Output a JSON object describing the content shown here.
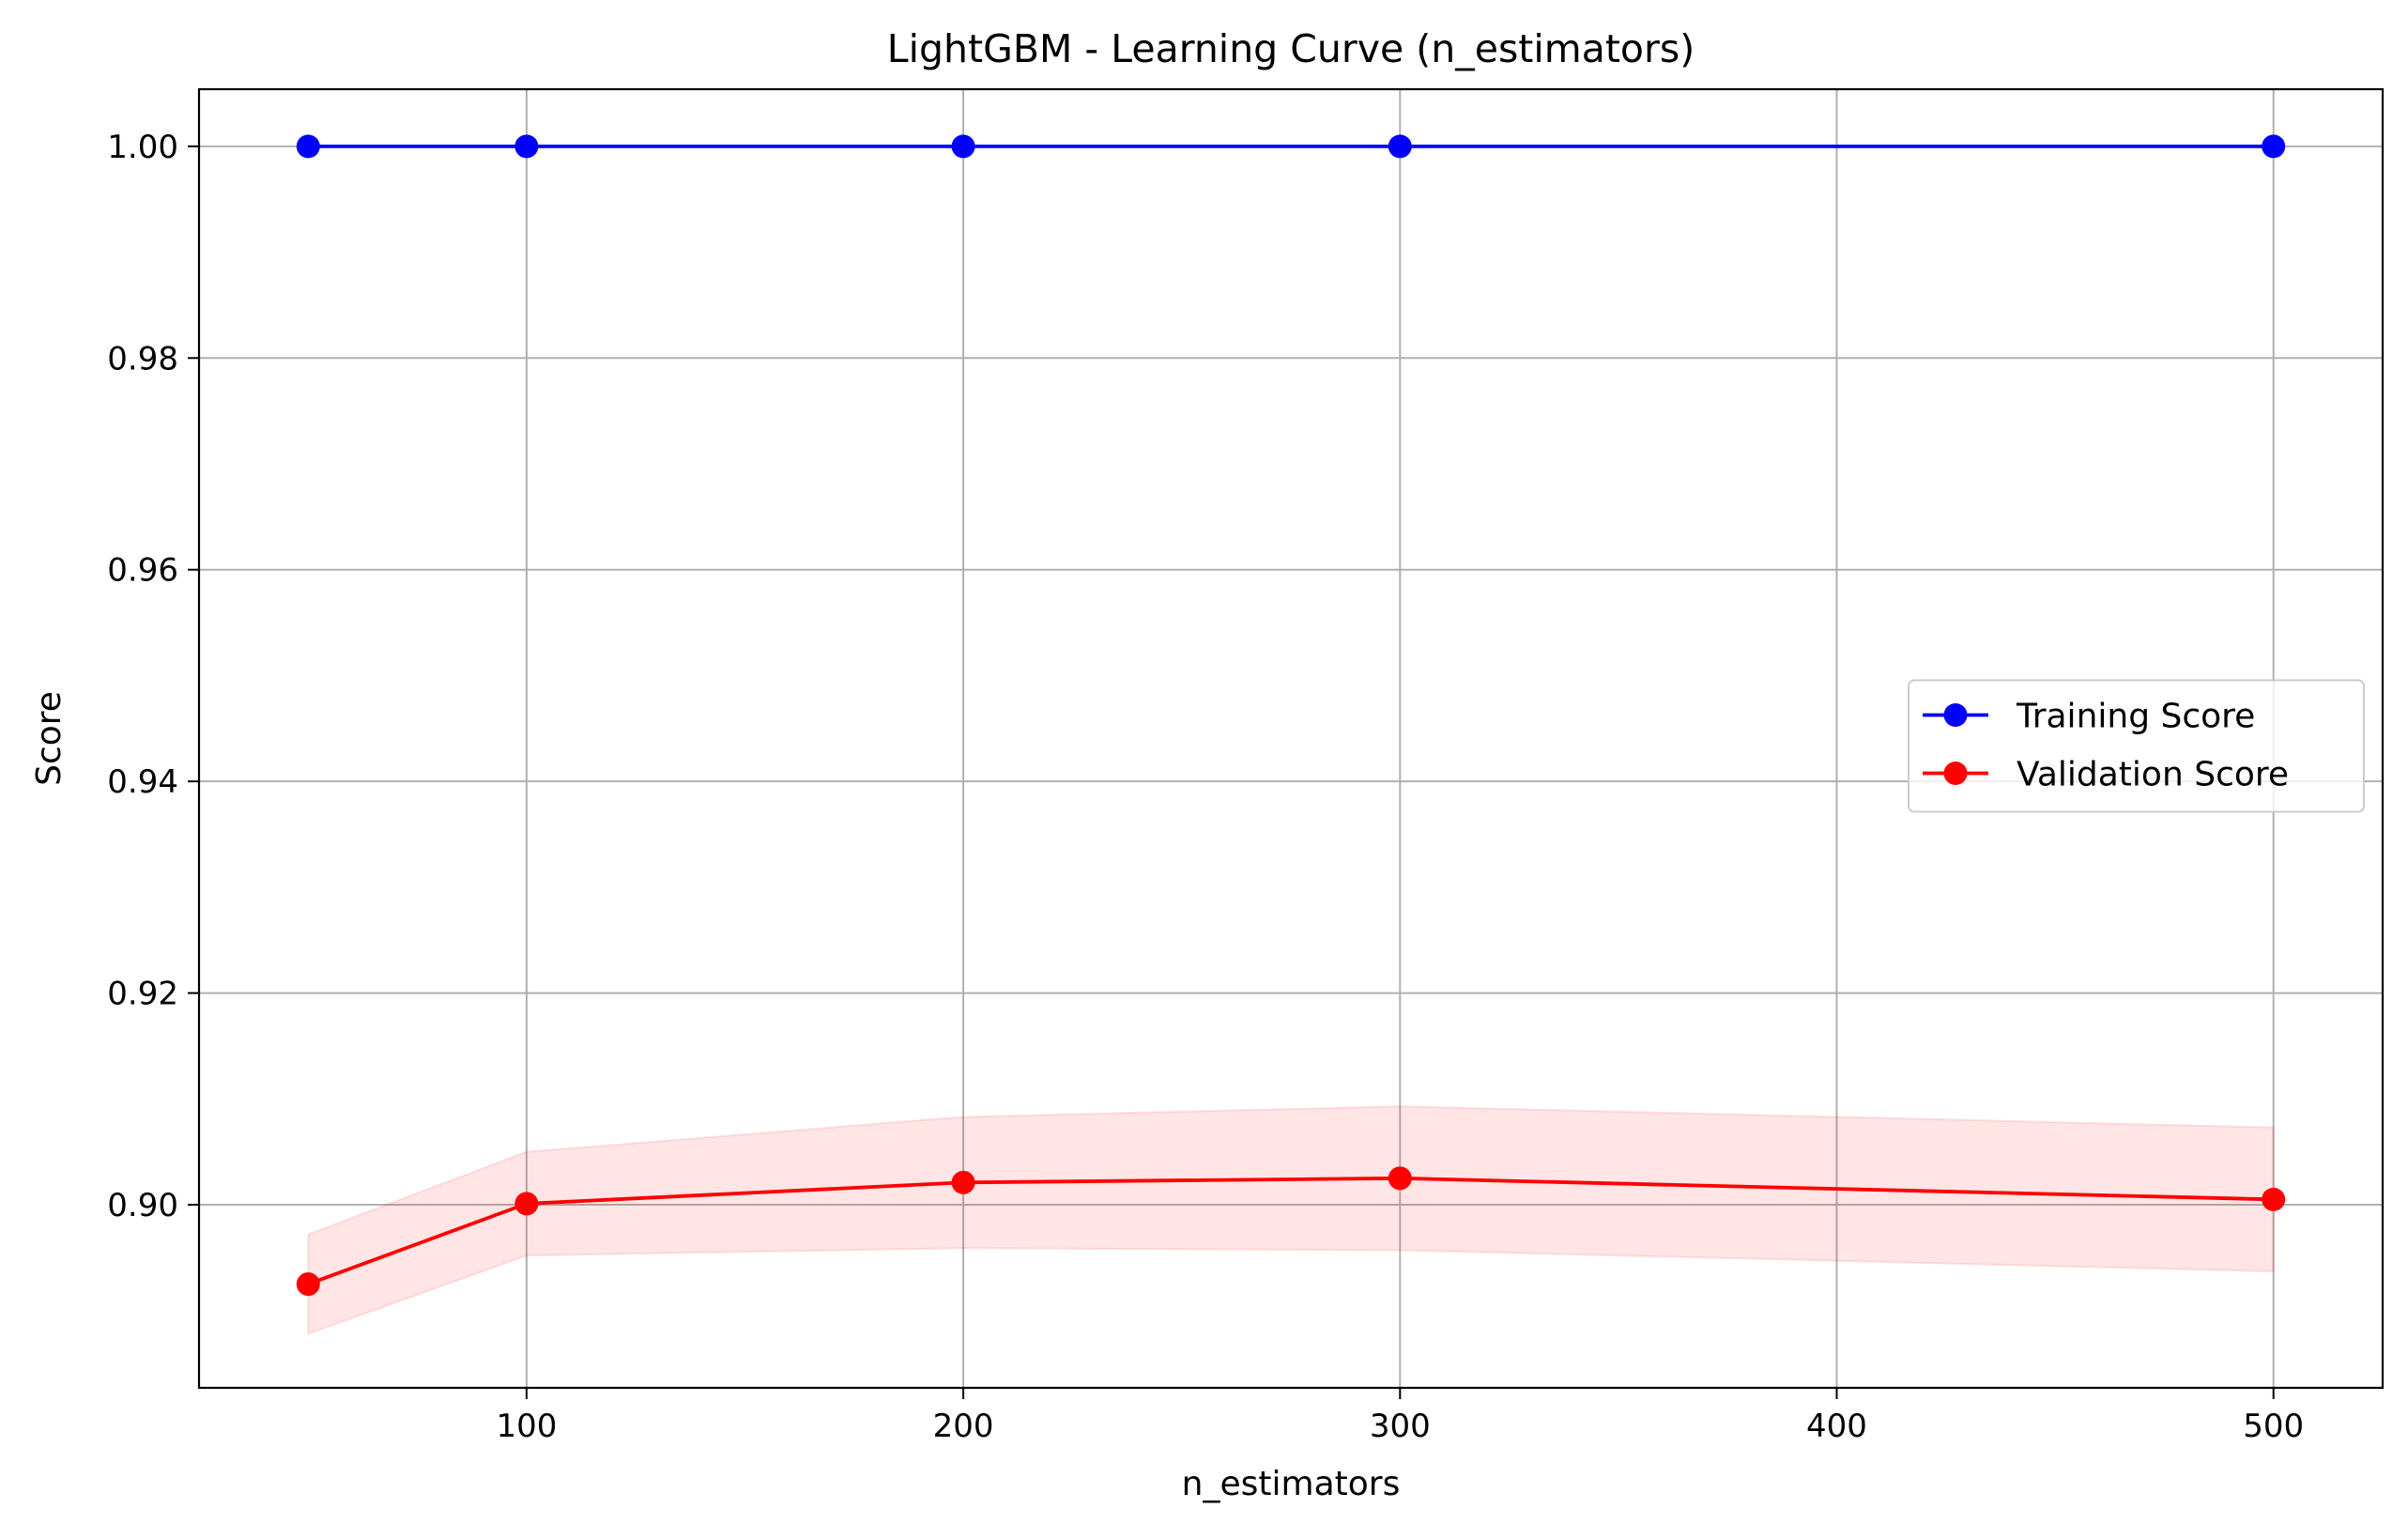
{
  "chart_data": {
    "type": "line",
    "title": "LightGBM - Learning Curve (n_estimators)",
    "xlabel": "n_estimators",
    "ylabel": "Score",
    "xlim": [
      25,
      525
    ],
    "ylim": [
      0.8827,
      1.0054
    ],
    "xticks": [
      100,
      200,
      300,
      400,
      500
    ],
    "xtick_labels": [
      "100",
      "200",
      "300",
      "400",
      "500"
    ],
    "yticks": [
      0.9,
      0.92,
      0.94,
      0.96,
      0.98,
      1.0
    ],
    "ytick_labels": [
      "0.90",
      "0.92",
      "0.94",
      "0.96",
      "0.98",
      "1.00"
    ],
    "grid": true,
    "legend_position": "center-right",
    "x": [
      50,
      100,
      200,
      300,
      500
    ],
    "series": [
      {
        "name": "Training Score",
        "color": "#0000ff",
        "marker": "circle",
        "values": [
          1.0,
          1.0,
          1.0,
          1.0,
          1.0
        ]
      },
      {
        "name": "Validation Score",
        "color": "#ff0000",
        "marker": "circle",
        "values": [
          0.8925,
          0.9001,
          0.9021,
          0.9025,
          0.9005
        ],
        "band_upper": [
          0.8972,
          0.905,
          0.9083,
          0.9093,
          0.9073
        ],
        "band_lower": [
          0.8878,
          0.8952,
          0.8959,
          0.8957,
          0.8937
        ],
        "band_color": "#ff0000"
      }
    ]
  }
}
